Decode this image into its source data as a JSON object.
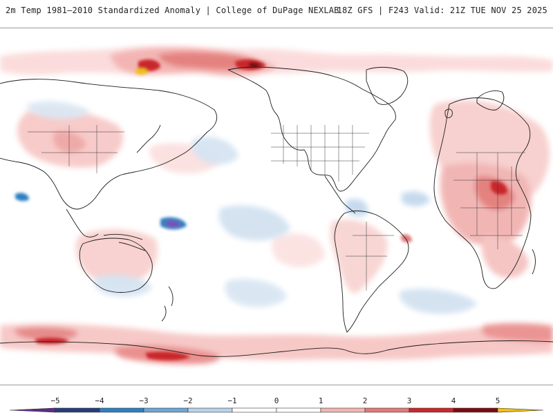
{
  "header": {
    "title_left": "2m Temp 1981–2010 Standardized Anomaly | College of DuPage NEXLAB",
    "title_right": "18Z GFS | F243 Valid: 21Z TUE NOV 25 2025"
  },
  "legend": {
    "ticks": [
      "−5",
      "−4",
      "−3",
      "−2",
      "−1",
      "0",
      "1",
      "2",
      "3",
      "4",
      "5"
    ],
    "colors": [
      "#5b2d8a",
      "#273e7a",
      "#2f7fc1",
      "#6fa6d6",
      "#b9d3ea",
      "#ffffff",
      "#ffffff",
      "#f1b5b2",
      "#e07a78",
      "#c9272c",
      "#7c0b11",
      "#f2c014"
    ]
  },
  "map": {
    "background": "#ffffff",
    "coast_color": "#1a1a1a"
  }
}
